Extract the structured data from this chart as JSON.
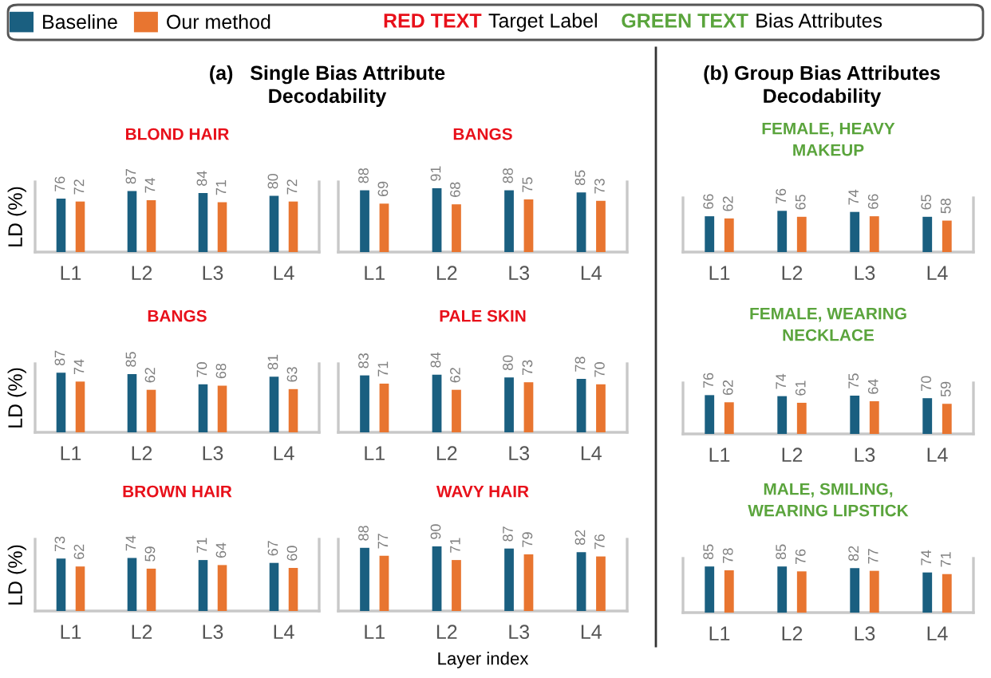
{
  "chart_data": [
    {
      "type": "bar",
      "subtitle": "(a)   Single Bias Attribute\nDecodability",
      "title": "BLOND HAIR",
      "ylabel": "LD (%)",
      "legend": "top",
      "annotations": [
        "RED TEXT",
        "Target Label",
        "GREEN TEXT",
        "Bias Attributes"
      ],
      "categories": [
        "L1",
        "L2",
        "L3",
        "L4"
      ],
      "ylim": [
        0,
        100
      ],
      "tick_labels": "x",
      "data_labels": true,
      "series": [
        {
          "name": "Baseline",
          "color": "#1a5f80",
          "values": [
            76,
            87,
            84,
            80
          ]
        },
        {
          "name": "Our method",
          "color": "#e87530",
          "values": [
            72,
            74,
            71,
            72
          ]
        }
      ]
    },
    {
      "type": "bar",
      "title": "BANGS",
      "categories": [
        "L1",
        "L2",
        "L3",
        "L4"
      ],
      "ylim": [
        0,
        100
      ],
      "tick_labels": "x",
      "data_labels": true,
      "series": [
        {
          "color": "#1a5f80",
          "values": [
            88,
            91,
            88,
            85
          ]
        },
        {
          "color": "#e87530",
          "values": [
            69,
            68,
            75,
            73
          ]
        }
      ]
    },
    {
      "type": "bar",
      "title": "BANGS",
      "ylabel": "LD (%)",
      "categories": [
        "L1",
        "L2",
        "L3",
        "L4"
      ],
      "ylim": [
        0,
        100
      ],
      "tick_labels": "x",
      "data_labels": true,
      "series": [
        {
          "color": "#1a5f80",
          "values": [
            87,
            85,
            70,
            81
          ]
        },
        {
          "color": "#e87530",
          "values": [
            74,
            62,
            68,
            63
          ]
        }
      ]
    },
    {
      "type": "bar",
      "title": "PALE SKIN",
      "categories": [
        "L1",
        "L2",
        "L3",
        "L4"
      ],
      "ylim": [
        0,
        100
      ],
      "tick_labels": "x",
      "data_labels": true,
      "series": [
        {
          "color": "#1a5f80",
          "values": [
            83,
            84,
            80,
            78
          ]
        },
        {
          "color": "#e87530",
          "values": [
            71,
            62,
            73,
            70
          ]
        }
      ]
    },
    {
      "type": "bar",
      "title": "BROWN HAIR",
      "ylabel": "LD (%)",
      "categories": [
        "L1",
        "L2",
        "L3",
        "L4"
      ],
      "ylim": [
        0,
        100
      ],
      "tick_labels": "x",
      "data_labels": true,
      "series": [
        {
          "color": "#1a5f80",
          "values": [
            73,
            74,
            71,
            67
          ]
        },
        {
          "color": "#e87530",
          "values": [
            62,
            59,
            64,
            60
          ]
        }
      ]
    },
    {
      "type": "bar",
      "title": "WAVY HAIR",
      "xlabel": "Layer index",
      "categories": [
        "L1",
        "L2",
        "L3",
        "L4"
      ],
      "ylim": [
        0,
        100
      ],
      "tick_labels": "x",
      "data_labels": true,
      "series": [
        {
          "color": "#1a5f80",
          "values": [
            88,
            90,
            87,
            82
          ]
        },
        {
          "color": "#e87530",
          "values": [
            77,
            71,
            79,
            76
          ]
        }
      ]
    },
    {
      "type": "bar",
      "subtitle": "(b) Group Bias Attributes\nDecodability",
      "title": "FEMALE, HEAVY\nMAKEUP",
      "categories": [
        "L1",
        "L2",
        "L3",
        "L4"
      ],
      "ylim": [
        0,
        100
      ],
      "tick_labels": "x",
      "data_labels": true,
      "series": [
        {
          "color": "#1a5f80",
          "values": [
            66,
            76,
            74,
            65
          ]
        },
        {
          "color": "#e87530",
          "values": [
            62,
            65,
            66,
            58
          ]
        }
      ]
    },
    {
      "type": "bar",
      "title": "FEMALE, WEARING\nNECKLACE",
      "categories": [
        "L1",
        "L2",
        "L3",
        "L4"
      ],
      "ylim": [
        0,
        100
      ],
      "tick_labels": "x",
      "data_labels": true,
      "series": [
        {
          "color": "#1a5f80",
          "values": [
            76,
            74,
            75,
            70
          ]
        },
        {
          "color": "#e87530",
          "values": [
            62,
            61,
            64,
            59
          ]
        }
      ]
    },
    {
      "type": "bar",
      "title": "MALE, SMILING,\nWEARING LIPSTICK",
      "categories": [
        "L1",
        "L2",
        "L3",
        "L4"
      ],
      "ylim": [
        0,
        100
      ],
      "tick_labels": "x",
      "data_labels": true,
      "series": [
        {
          "color": "#1a5f80",
          "values": [
            85,
            85,
            82,
            74
          ]
        },
        {
          "color": "#e87530",
          "values": [
            78,
            76,
            77,
            71
          ]
        }
      ]
    }
  ]
}
